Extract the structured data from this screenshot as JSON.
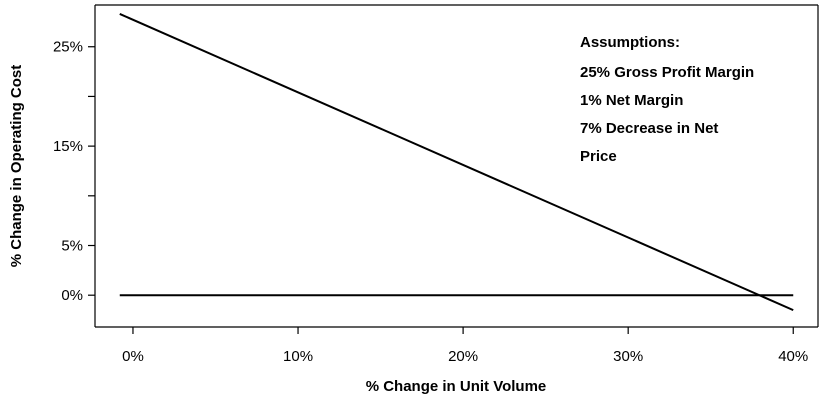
{
  "chart_data": {
    "type": "line",
    "xlabel": "% Change in Unit Volume",
    "ylabel": "% Change in Operating Cost",
    "x_ticks": [
      0,
      10,
      20,
      30,
      40
    ],
    "x_tick_labels": [
      "0%",
      "10%",
      "20%",
      "30%",
      "40%"
    ],
    "y_ticks": [
      0,
      5,
      15,
      25
    ],
    "y_tick_labels": [
      "0%",
      "5%",
      "15%",
      "25%"
    ],
    "y_minor_ticks": [
      10,
      20
    ],
    "xlim": [
      -2.3,
      41.5
    ],
    "ylim": [
      -3.2,
      29.2
    ],
    "series": [
      {
        "x": [
          -0.8,
          40
        ],
        "y": [
          28.3,
          -1.5
        ]
      },
      {
        "x": [
          -0.8,
          40
        ],
        "y": [
          0,
          0
        ]
      }
    ],
    "annotations": [
      "Assumptions:",
      "25% Gross Profit Margin",
      "1%  Net Margin",
      "7%  Decrease in Net",
      "Price"
    ],
    "grid": false
  }
}
